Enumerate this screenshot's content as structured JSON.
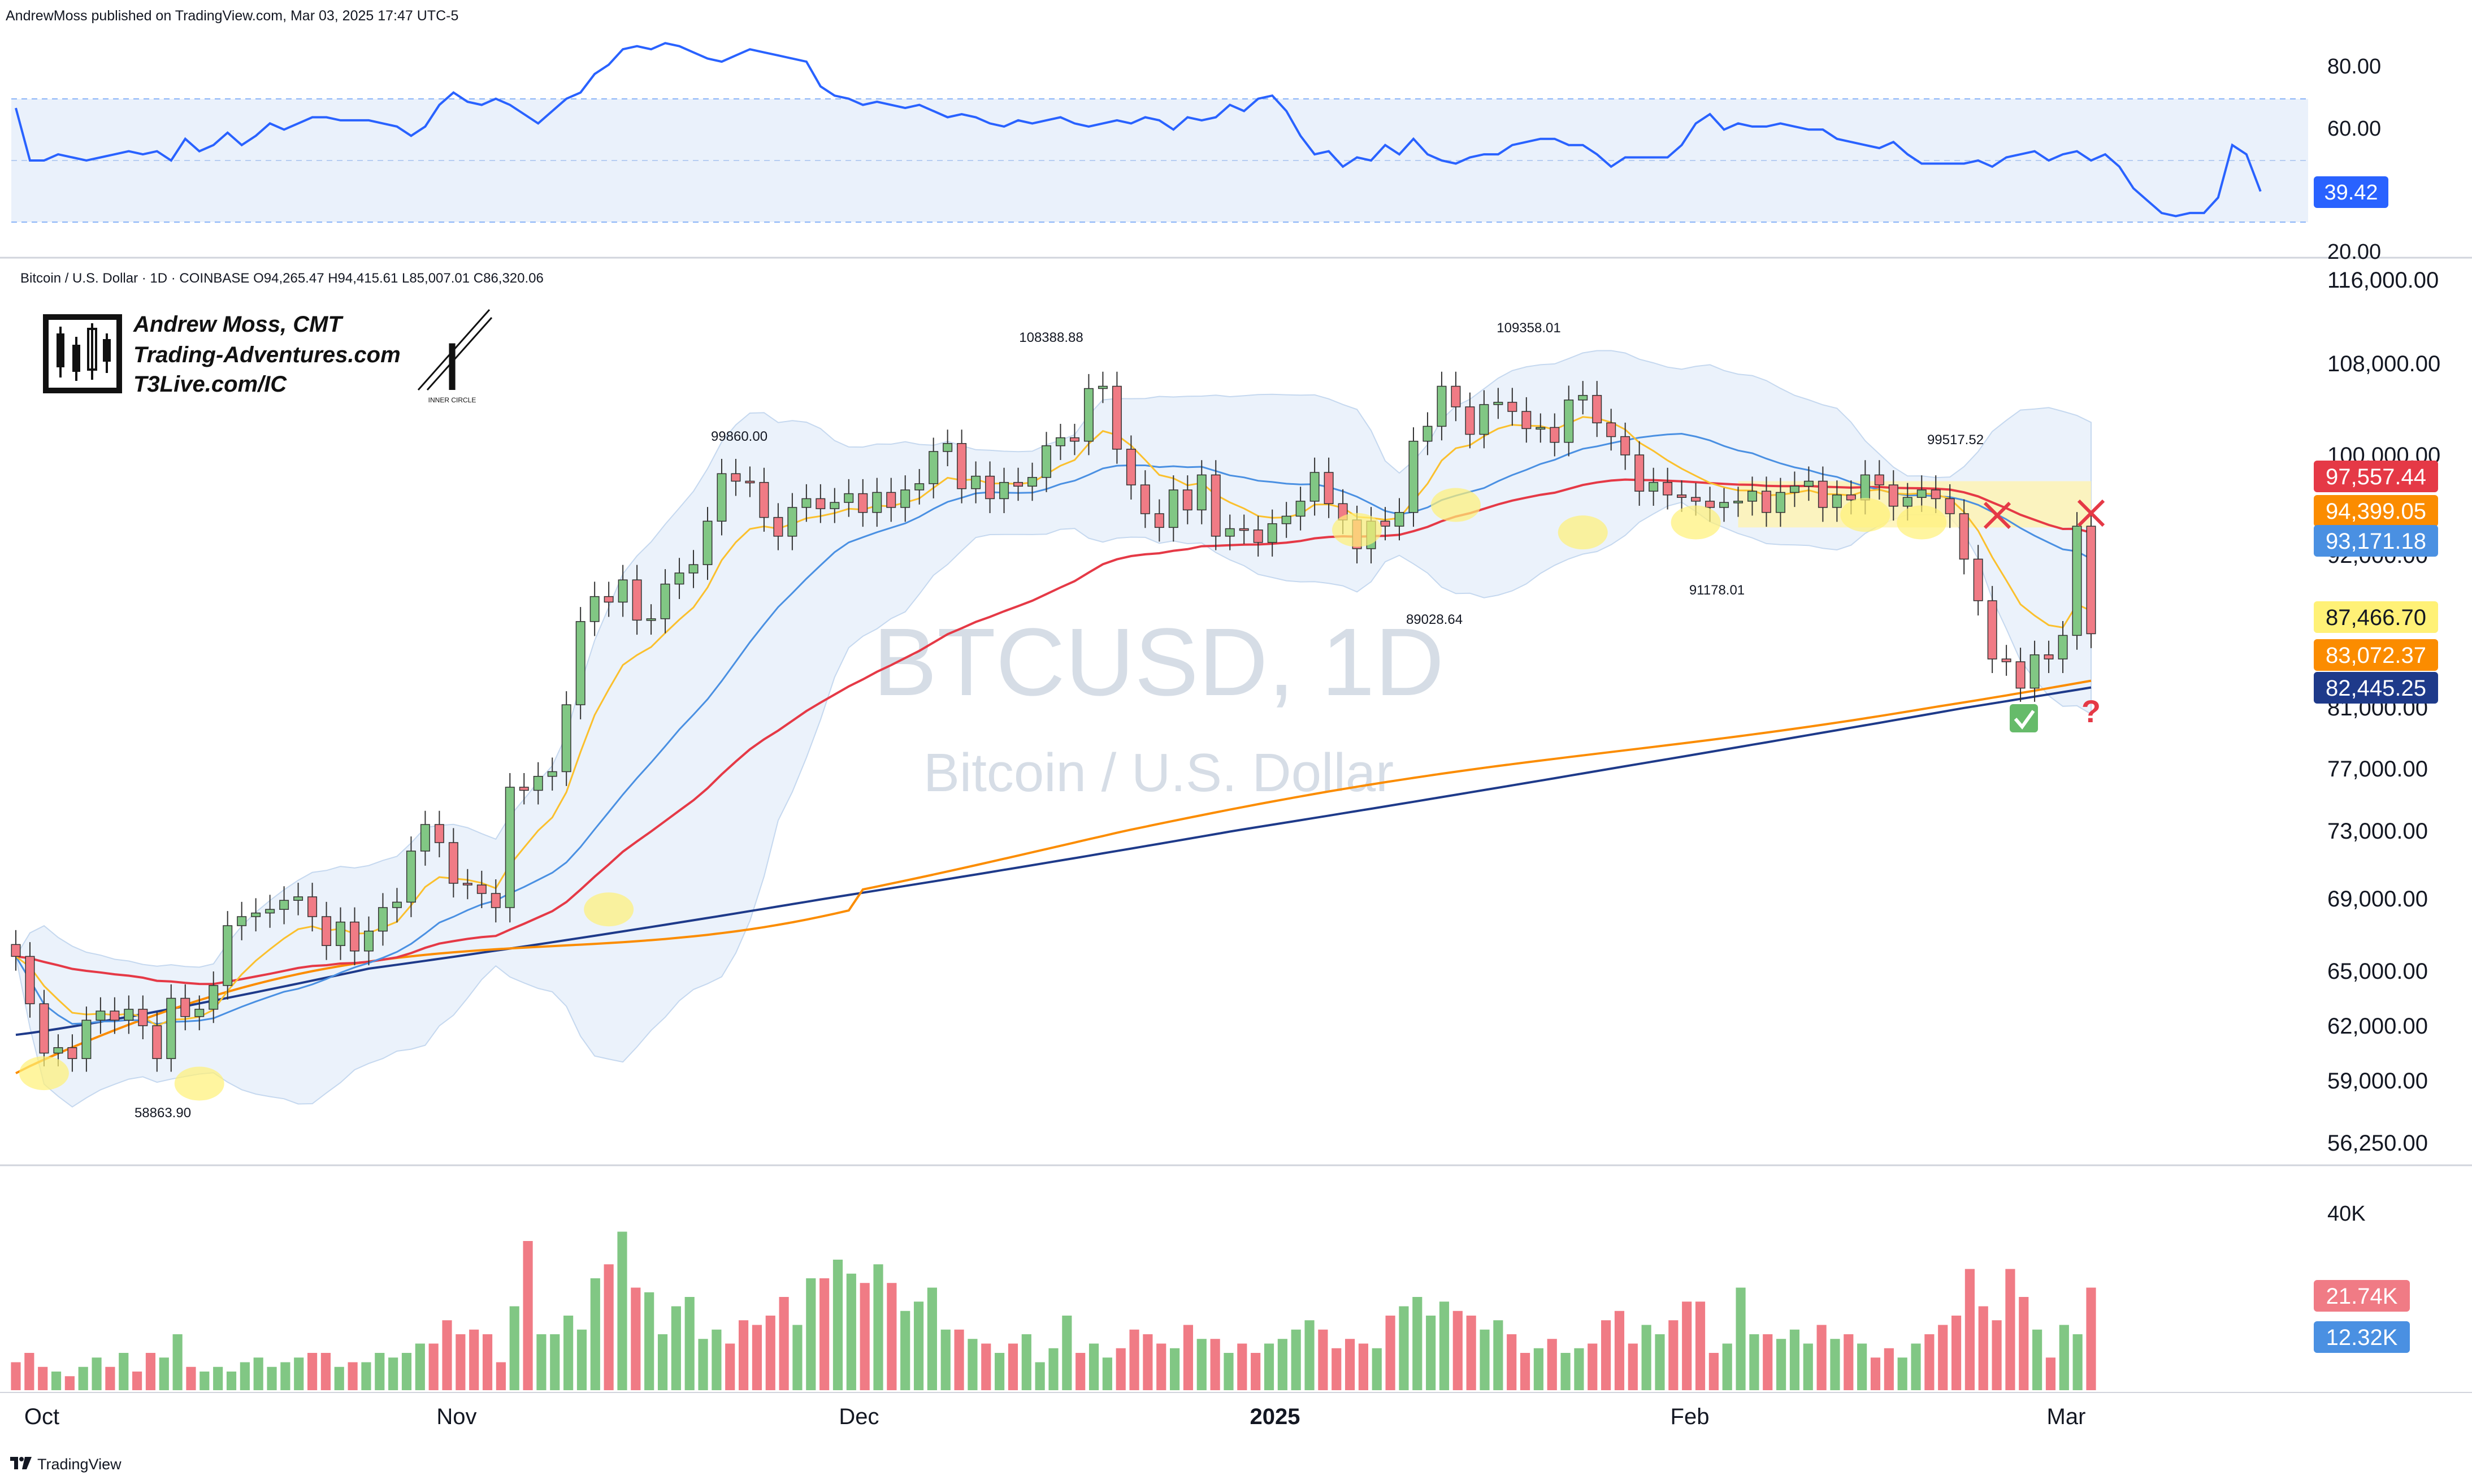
{
  "header": {
    "published": "AndrewMoss published on TradingView.com, Mar 03, 2025 17:47 UTC-5"
  },
  "legend": {
    "symbol_line": "Bitcoin / U.S. Dollar · 1D · COINBASE O94,265.47 H94,415.61 L85,007.01 C86,320.06"
  },
  "branding": {
    "name": "Andrew Moss, CMT",
    "site": "Trading-Adventures.com",
    "link": "T3Live.com/IC",
    "circle_caption": "INNER CIRCLE"
  },
  "watermark": {
    "symbol": "BTCUSD, 1D",
    "description": "Bitcoin / U.S. Dollar"
  },
  "footer": {
    "label": "TradingView"
  },
  "colors": {
    "up": "#81c784",
    "down": "#f07b85",
    "rsi": "#2962ff",
    "ema_red": "#e53946",
    "ema_orange": "#fb8c00",
    "sma_blue": "#1e3a8a",
    "ema_yellow": "#fbc02d",
    "bb_fill": "#dbe8f7",
    "sma_lightblue": "#4a90e2"
  },
  "chart_data": [
    {
      "type": "line",
      "name": "RSI panel",
      "y_ticks": [
        "80.00",
        "60.00",
        "20.00"
      ],
      "band": [
        30,
        70
      ],
      "last_value_label": "39.42",
      "values": [
        67,
        50,
        50,
        52,
        51,
        50,
        51,
        52,
        53,
        52,
        53,
        50,
        57,
        53,
        55,
        59,
        55,
        58,
        62,
        60,
        62,
        64,
        64,
        63,
        63,
        63,
        62,
        61,
        58,
        61,
        68,
        72,
        69,
        68,
        70,
        68,
        65,
        62,
        66,
        70,
        72,
        78,
        81,
        86,
        87,
        86,
        88,
        87,
        85,
        83,
        82,
        84,
        86,
        85,
        84,
        83,
        82,
        74,
        71,
        70,
        68,
        69,
        68,
        67,
        68,
        66,
        64,
        65,
        64,
        62,
        61,
        63,
        62,
        63,
        64,
        62,
        61,
        62,
        63,
        62,
        64,
        63,
        60,
        64,
        63,
        64,
        68,
        66,
        70,
        71,
        66,
        58,
        52,
        53,
        48,
        51,
        50,
        55,
        52,
        57,
        52,
        50,
        49,
        51,
        52,
        52,
        55,
        56,
        57,
        57,
        55,
        55,
        52,
        48,
        51,
        51,
        51,
        51,
        55,
        62,
        65,
        60,
        62,
        61,
        61,
        62,
        61,
        60,
        60,
        57,
        56,
        55,
        54,
        56,
        52,
        49,
        49,
        49,
        49,
        50,
        48,
        51,
        52,
        53,
        50,
        52,
        53,
        50,
        52,
        48,
        41,
        37,
        33,
        32,
        33,
        33,
        38,
        55,
        52,
        40
      ],
      "value_label": "39.42"
    },
    {
      "type": "candlestick",
      "name": "BTCUSD 1D",
      "x_labels": [
        "Oct",
        "Nov",
        "Dec",
        "2025",
        "Feb",
        "Mar"
      ],
      "y_ticks": [
        "116,000.00",
        "108,000.00",
        "100,000.00",
        "92,000.00",
        "81,000.00",
        "77,000.00",
        "73,000.00",
        "69,000.00",
        "65,000.00",
        "62,000.00",
        "59,000.00",
        "56,250.00"
      ],
      "y_range": [
        54000,
        117500
      ],
      "annotations": [
        "108388.88",
        "109358.01",
        "99860.00",
        "99517.52",
        "91178.01",
        "89028.64",
        "58863.90"
      ],
      "price_labels": [
        {
          "text": "97,557.44",
          "color": "#e53946"
        },
        {
          "text": "94,399.05",
          "color": "#fb8c00"
        },
        {
          "text": "93,171.18",
          "color": "#4a90e2"
        },
        {
          "text": "87,466.70",
          "color": "#fff176"
        },
        {
          "text": "83,072.37",
          "color": "#fb8c00"
        },
        {
          "text": "82,445.25",
          "color": "#1e3a8a"
        }
      ],
      "closes": [
        65800,
        63200,
        60500,
        60800,
        60200,
        62300,
        62800,
        62300,
        62900,
        62000,
        60200,
        63500,
        62500,
        62900,
        64200,
        67500,
        68000,
        68200,
        68400,
        68900,
        69100,
        68000,
        66400,
        67700,
        66100,
        67200,
        68500,
        68800,
        71800,
        73400,
        72300,
        69900,
        69800,
        69300,
        68500,
        75800,
        75600,
        76500,
        76800,
        81200,
        87200,
        89000,
        88600,
        90200,
        87300,
        87400,
        89900,
        90700,
        91300,
        94700,
        98500,
        97900,
        97800,
        95000,
        93500,
        95800,
        96500,
        95700,
        96200,
        96900,
        95400,
        97000,
        95800,
        97200,
        97700,
        100300,
        101000,
        97300,
        98300,
        96500,
        97800,
        97500,
        98200,
        100800,
        101500,
        101200,
        105800,
        106000,
        100500,
        97600,
        95300,
        94200,
        97200,
        95600,
        98400,
        93500,
        94100,
        94000,
        93000,
        94500,
        95100,
        96300,
        98600,
        96100,
        94800,
        92500,
        94700,
        94300,
        95400,
        101200,
        102500,
        106000,
        104200,
        101800,
        104400,
        104600,
        103800,
        102300,
        102400,
        101100,
        104800,
        105200,
        102800,
        101600,
        100000,
        97100,
        97800,
        96800,
        96600,
        96300,
        95800,
        96200,
        96300,
        97100,
        95400,
        97000,
        97500,
        97900,
        95800,
        96800,
        96400,
        98400,
        97600,
        95900,
        96600,
        97200,
        96500,
        95300,
        91700,
        88700,
        84500,
        84300,
        82400,
        84800,
        84500,
        86200,
        94300,
        86320
      ],
      "ma_yellow_last": 87466.7,
      "ma_orange_last": 83072.37,
      "ma_navy_last": 82445.25
    },
    {
      "type": "bar",
      "name": "Volume",
      "y_ticks": [
        "40K"
      ],
      "value_labels": [
        {
          "text": "21.74K",
          "color": "#f07b85"
        },
        {
          "text": "12.32K",
          "color": "#4a90e2"
        }
      ],
      "values": [
        6,
        8,
        5,
        4,
        3,
        5,
        7,
        5,
        8,
        4,
        8,
        7,
        12,
        5,
        4,
        5,
        4,
        6,
        7,
        5,
        6,
        7,
        8,
        8,
        5,
        6,
        6,
        8,
        7,
        8,
        10,
        10,
        15,
        12,
        13,
        12,
        6,
        18,
        32,
        12,
        12,
        16,
        13,
        24,
        27,
        34,
        22,
        21,
        12,
        18,
        20,
        11,
        13,
        10,
        15,
        14,
        16,
        20,
        14,
        24,
        24,
        28,
        25,
        23,
        27,
        23,
        17,
        19,
        22,
        13,
        13,
        11,
        10,
        8,
        10,
        12,
        6,
        9,
        16,
        8,
        10,
        7,
        9,
        13,
        12,
        10,
        9,
        14,
        11,
        11,
        8,
        10,
        8,
        10,
        11,
        13,
        15,
        13,
        9,
        11,
        10,
        9,
        16,
        18,
        20,
        16,
        19,
        17,
        16,
        13,
        15,
        12,
        8,
        9,
        11,
        8,
        9,
        10,
        15,
        17,
        10,
        14,
        12,
        15,
        19,
        19,
        8,
        10,
        22,
        12,
        12,
        11,
        13,
        10,
        14,
        11,
        12,
        10,
        7,
        9,
        7,
        10,
        12,
        14,
        16,
        26,
        18,
        15,
        26,
        20,
        13,
        7,
        14,
        12,
        22
      ]
    }
  ]
}
